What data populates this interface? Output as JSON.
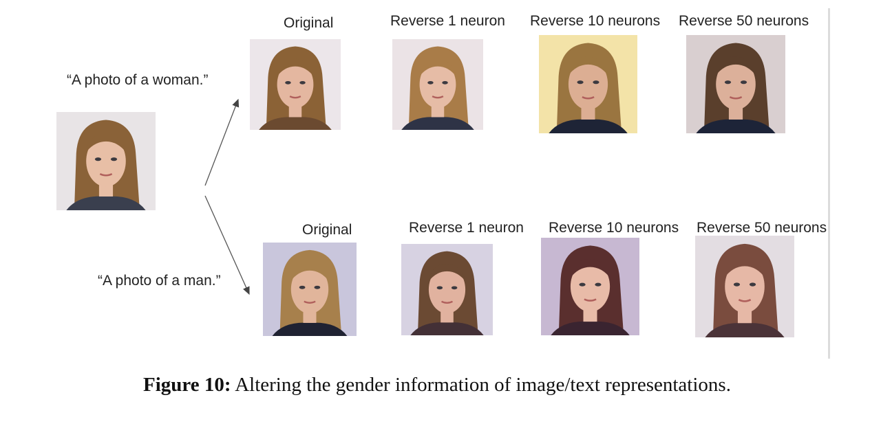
{
  "prompts": {
    "woman": "“A photo of a woman.”",
    "man": "“A photo of a man.”"
  },
  "rows": [
    {
      "labels": [
        "Original",
        "Reverse 1 neuron",
        "Reverse 10 neurons",
        "Reverse 50 neurons"
      ]
    },
    {
      "labels": [
        "Original",
        "Reverse 1 neuron",
        "Reverse 10 neurons",
        "Reverse 50 neurons"
      ]
    }
  ],
  "caption": {
    "label": "Figure 10:",
    "text": "Altering the gender information of image/text representations."
  },
  "faces": {
    "source": {
      "bg": "#e8e4e6",
      "hair": "#8a6238",
      "skin": "#e8bfa6",
      "shirt": "#3a3f4e"
    },
    "r1_original": {
      "bg": "#ece6ea",
      "hair": "#8b6236",
      "skin": "#e4b7a0",
      "shirt": "#6b4a30"
    },
    "r1_rev1": {
      "bg": "#ebe3e6",
      "hair": "#a97c48",
      "skin": "#e6bca6",
      "shirt": "#2e3346"
    },
    "r1_rev10": {
      "bg": "#f3e3a8",
      "hair": "#9a7540",
      "skin": "#dcae93",
      "shirt": "#1e2436"
    },
    "r1_rev50": {
      "bg": "#d9cfd0",
      "hair": "#5a3f2c",
      "skin": "#dcb09a",
      "shirt": "#1d2438"
    },
    "r2_original": {
      "bg": "#c9c6dc",
      "hair": "#a7804c",
      "skin": "#e1b59b",
      "shirt": "#1f2232"
    },
    "r2_rev1": {
      "bg": "#d7d2e2",
      "hair": "#6b4a33",
      "skin": "#e1b29f",
      "shirt": "#433036"
    },
    "r2_rev10": {
      "bg": "#c7b8d2",
      "hair": "#5a2f2e",
      "skin": "#e8bba8",
      "shirt": "#3a2430"
    },
    "r2_rev50": {
      "bg": "#e3dde2",
      "hair": "#7a4c3e",
      "skin": "#e6b8a6",
      "shirt": "#4b3338"
    }
  }
}
